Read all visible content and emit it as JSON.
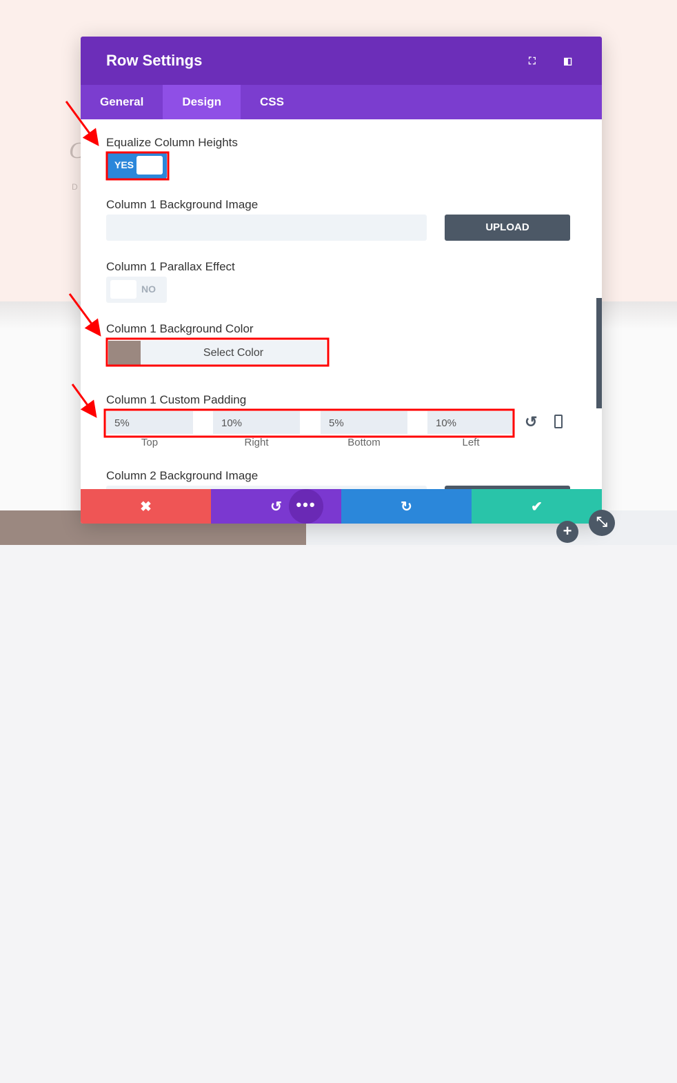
{
  "modal": {
    "title": "Row Settings",
    "tabs": [
      {
        "label": "General"
      },
      {
        "label": "Design",
        "active": true
      },
      {
        "label": "CSS"
      }
    ]
  },
  "fields": {
    "equalize": {
      "label": "Equalize Column Heights",
      "value": "YES"
    },
    "col1_bg_image": {
      "label": "Column 1 Background Image",
      "button": "UPLOAD"
    },
    "col1_parallax": {
      "label": "Column 1 Parallax Effect",
      "value": "NO"
    },
    "col1_bg_color": {
      "label": "Column 1 Background Color",
      "button": "Select Color",
      "swatch": "#9b8880"
    },
    "col1_padding": {
      "label": "Column 1 Custom Padding",
      "values": [
        "5%",
        "10%",
        "5%",
        "10%"
      ],
      "sides": [
        "Top",
        "Right",
        "Bottom",
        "Left"
      ]
    },
    "col2_bg_image": {
      "label": "Column 2 Background Image"
    }
  },
  "colors": {
    "header": "#6c2eb9",
    "cancel": "#ef5555",
    "undo": "#7b38d0",
    "redo": "#2b87da",
    "save": "#29c4a9",
    "annotation": "#ff0000"
  }
}
